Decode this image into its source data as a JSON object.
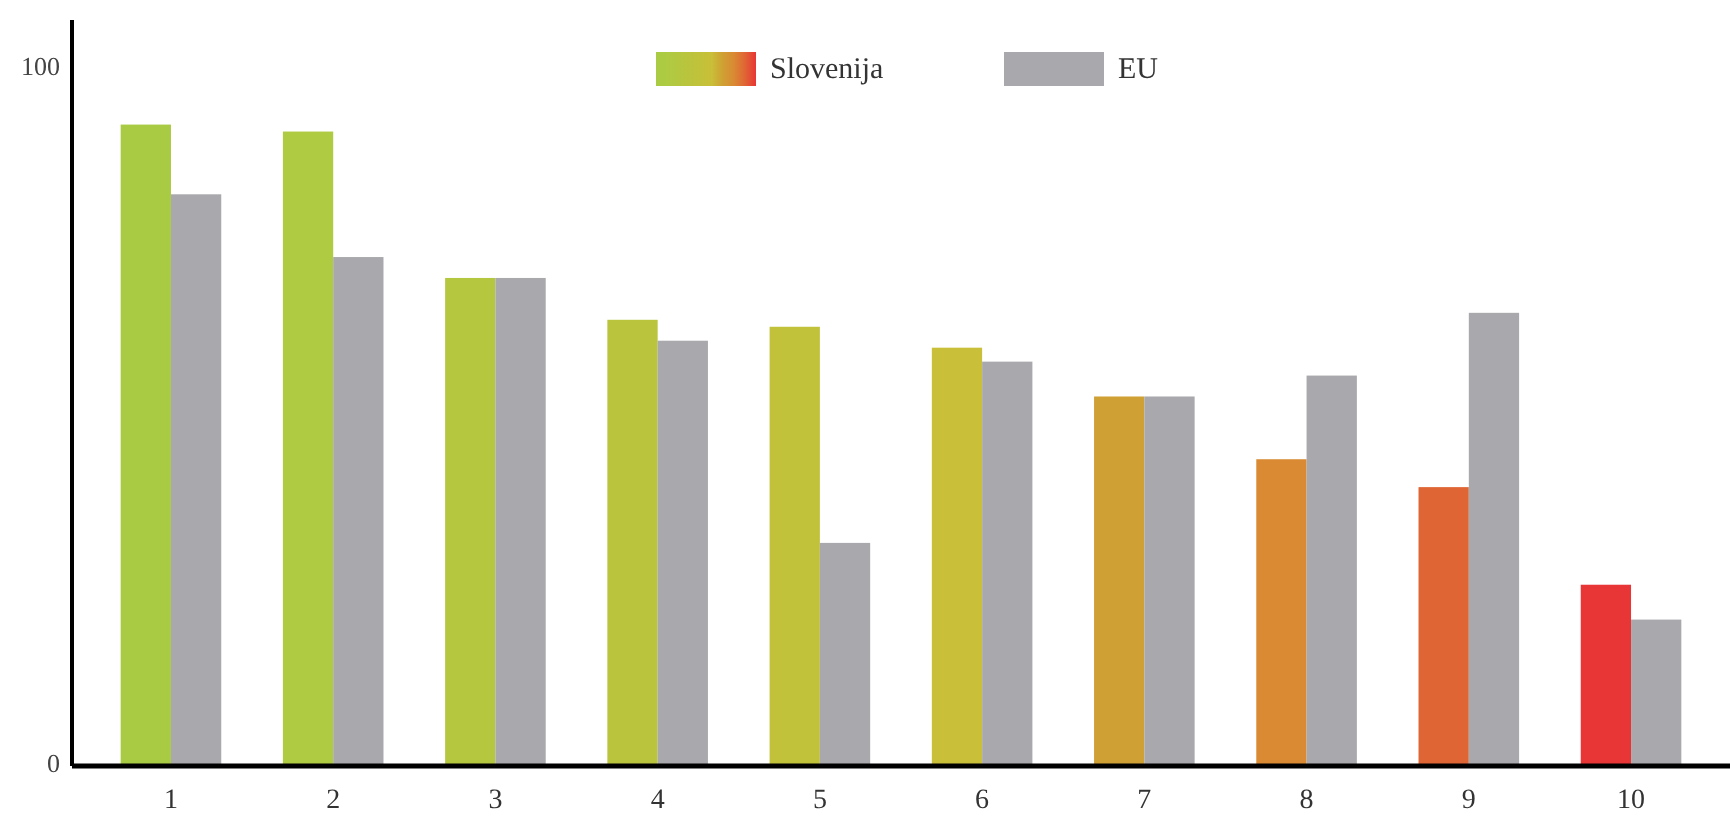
{
  "chart_data": {
    "type": "bar",
    "categories": [
      "1",
      "2",
      "3",
      "4",
      "5",
      "6",
      "7",
      "8",
      "9",
      "10"
    ],
    "series": [
      {
        "name": "Slovenija",
        "colors": [
          "#a9cb43",
          "#aecb42",
          "#b4c73f",
          "#bac43c",
          "#c1c23a",
          "#c9bf38",
          "#cfa033",
          "#d98a33",
          "#e06535",
          "#e83535"
        ],
        "values": [
          92,
          91,
          70,
          64,
          63,
          60,
          53,
          44,
          40,
          26
        ]
      },
      {
        "name": "EU",
        "color": "#a9a9ad",
        "values": [
          82,
          73,
          70,
          61,
          32,
          58,
          53,
          56,
          65,
          21
        ]
      }
    ],
    "ylim": [
      0,
      107
    ],
    "yticks": [
      0,
      100
    ],
    "grid": false,
    "legend": "top"
  }
}
